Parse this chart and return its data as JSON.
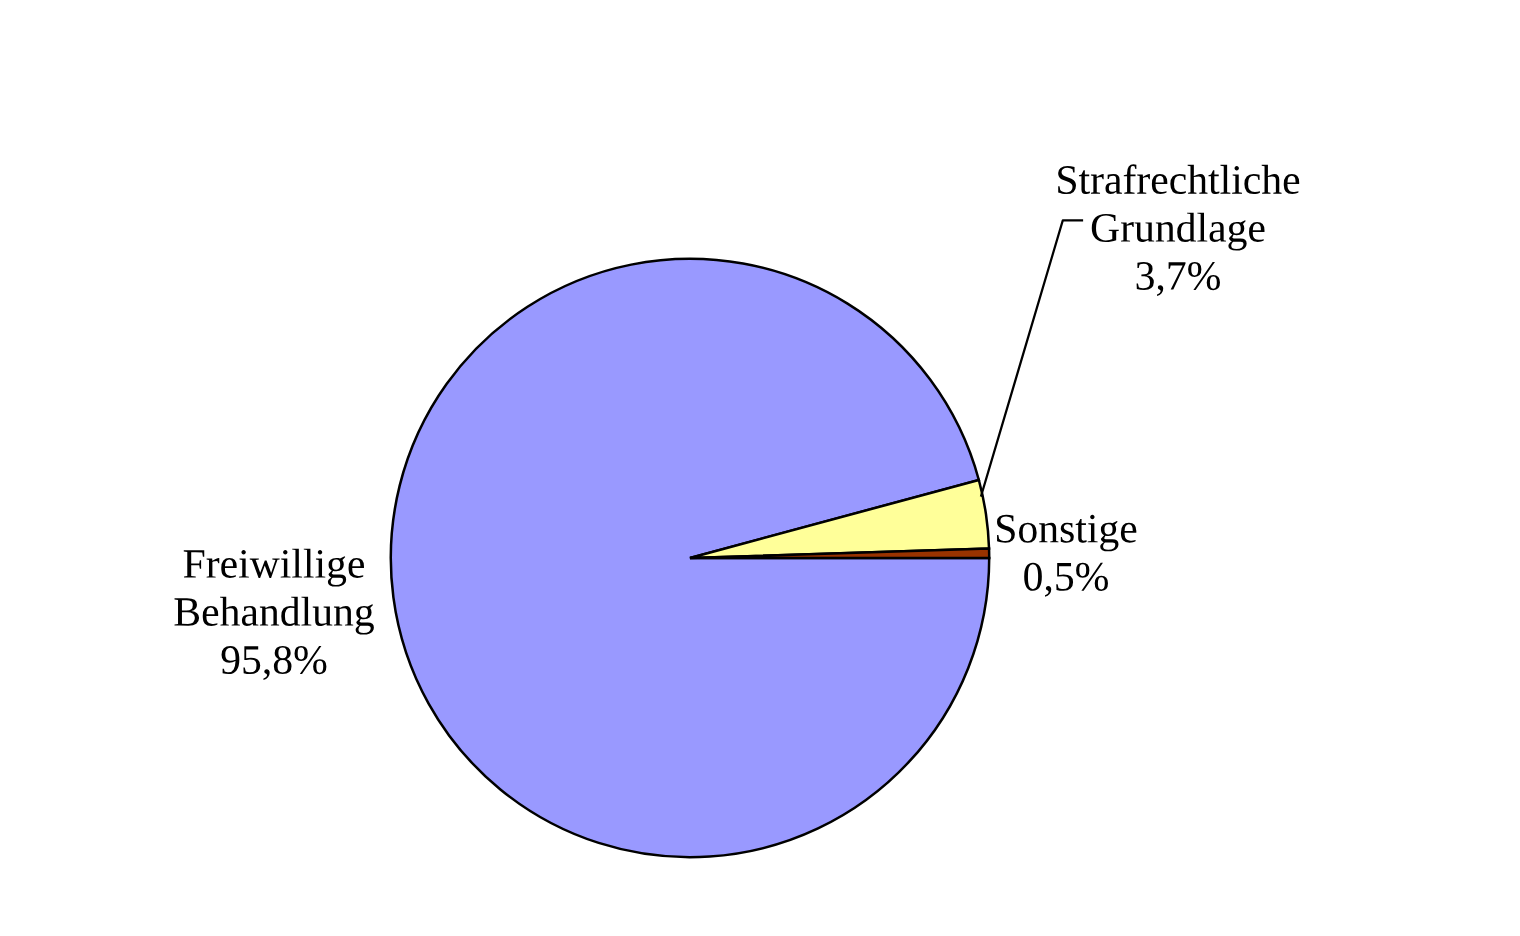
{
  "chart_data": {
    "type": "pie",
    "categories": [
      "Freiwillige\nBehandlung",
      "Strafrechtliche\nGrundlage",
      "Sonstige"
    ],
    "values": [
      95.8,
      3.7,
      0.5
    ],
    "colors": [
      "#9999ff",
      "#ffff99",
      "#993300"
    ],
    "value_labels": [
      "95,8%",
      "3,7%",
      "0,5%"
    ],
    "legend": false
  }
}
